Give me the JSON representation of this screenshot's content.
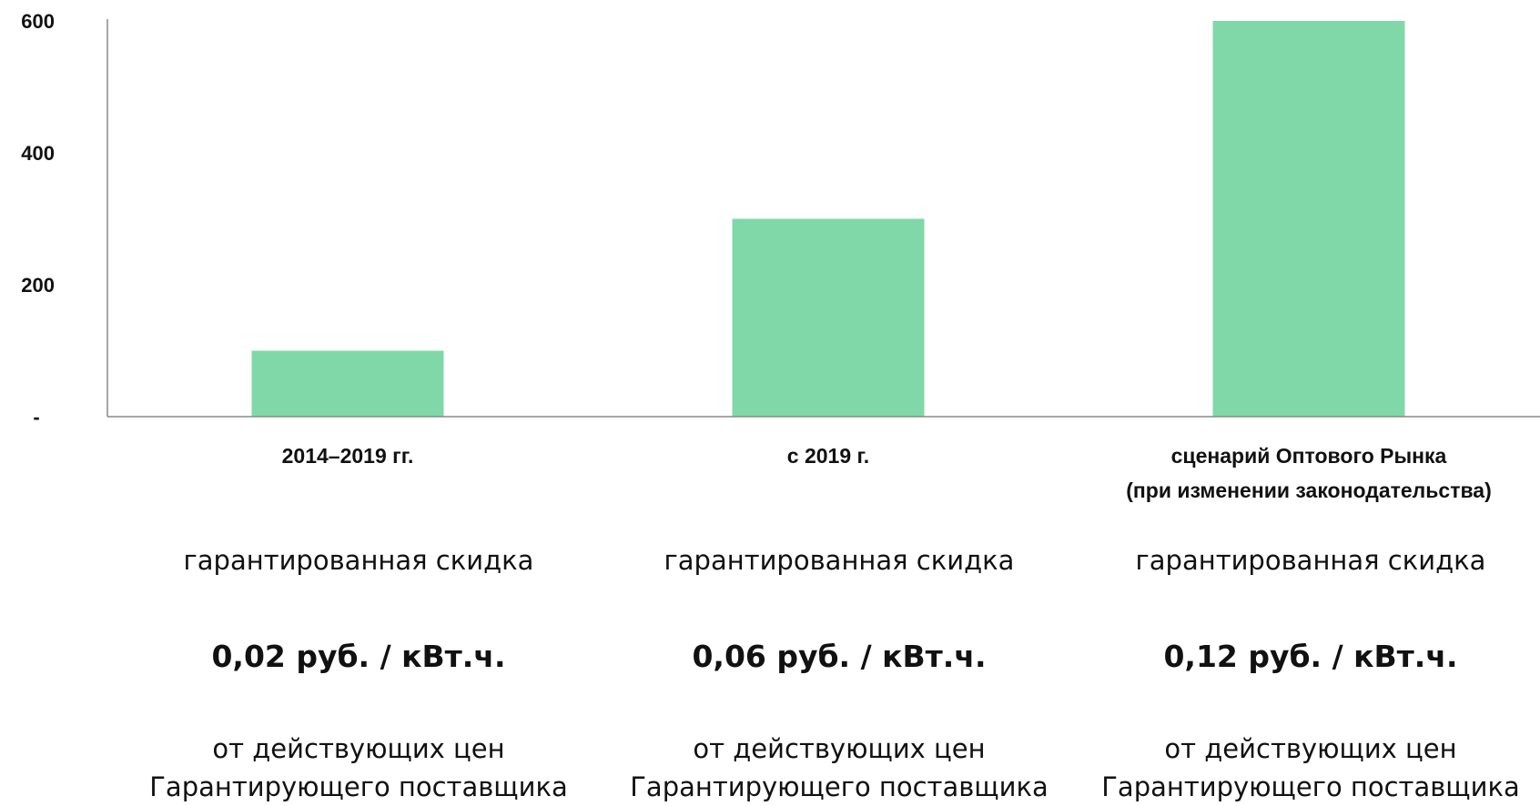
{
  "chart_data": {
    "type": "bar",
    "categories": [
      [
        "2014–2019 гг."
      ],
      [
        "с 2019 г."
      ],
      [
        "сценарий Оптового Рынка",
        "(при изменении законодательства)"
      ]
    ],
    "values": [
      100,
      300,
      600
    ],
    "ylim": [
      0,
      600
    ],
    "yticks": [
      0,
      200,
      400,
      600
    ],
    "ytick_labels": [
      "-",
      "200",
      "400",
      "600"
    ],
    "bar_color": "#80d8a8",
    "axis_color": "#8a8a8a",
    "grid": false,
    "title": "",
    "xlabel": "",
    "ylabel": ""
  },
  "info": [
    {
      "label": "гарантированная скидка",
      "value": "0,02 руб. / кВт.ч.",
      "note_line1": "от действующих цен",
      "note_line2": "Гарантирующего поставщика"
    },
    {
      "label": "гарантированная скидка",
      "value": "0,06 руб. / кВт.ч.",
      "note_line1": "от действующих цен",
      "note_line2": "Гарантирующего поставщика"
    },
    {
      "label": "гарантированная скидка",
      "value": "0,12 руб. / кВт.ч.",
      "note_line1": "от действующих цен",
      "note_line2": "Гарантирующего поставщика"
    }
  ]
}
